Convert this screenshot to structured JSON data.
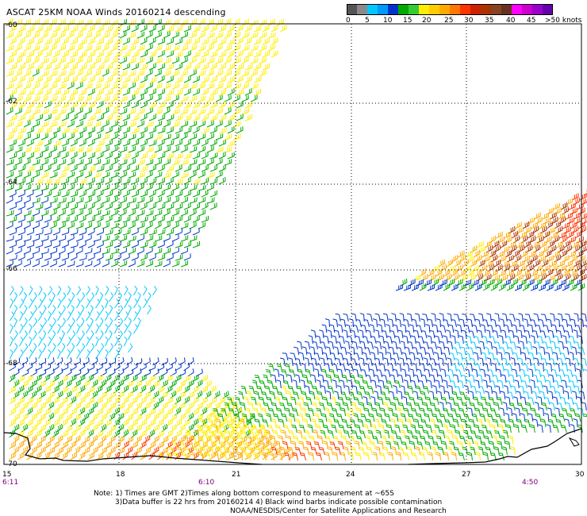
{
  "title": "ASCAT 25KM NOAA Winds 20160214 descending",
  "colorbar": {
    "colors": [
      "#555555",
      "#8a8a8a",
      "#00c8ff",
      "#0099ff",
      "#0033cc",
      "#00aa00",
      "#33cc33",
      "#ffee00",
      "#ffcc00",
      "#ffaa00",
      "#ff7700",
      "#ff3300",
      "#cc2200",
      "#aa3300",
      "#884422",
      "#663322",
      "#ff00ff",
      "#cc00cc",
      "#9900cc",
      "#6600aa"
    ],
    "labels": [
      "0",
      "5",
      "10",
      "15",
      "20",
      "25",
      "30",
      "35",
      "40",
      "45",
      ">50 knots"
    ]
  },
  "y_labels": [
    "-60",
    "-62",
    "-64",
    "-66",
    "-68",
    "-70"
  ],
  "x_labels": [
    "15",
    "18",
    "21",
    "24",
    "27",
    "30"
  ],
  "time_labels": [
    "6:11",
    "6:10",
    "4:50"
  ],
  "notes": [
    "Note: 1) Times are GMT 2)Times along bottom correspond to measurement at ~65S",
    "3)Data buffer is 22 hrs from 20160214 4) Black wind barbs indicate possible contamination",
    "NOAA/NESDIS/Center for Satellite Applications and Research"
  ],
  "map": {
    "lat_range": [
      -60,
      -70
    ],
    "lon_range": [
      15,
      30
    ],
    "grid": "dotted",
    "wind_speed_bins_colors": {
      "0-5": "#555555",
      "5-10": "#00c8ff",
      "10-15": "#0033cc",
      "15-20": "#00aa00",
      "20-25": "#ffee00",
      "25-30": "#ffaa00",
      "30-35": "#ff3300",
      "35-40": "#aa3300"
    }
  }
}
